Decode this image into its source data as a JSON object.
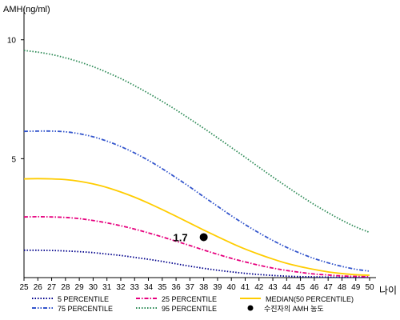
{
  "chart_data": {
    "type": "line",
    "title": "",
    "ylabel": "AMH(ng/ml)",
    "xlabel": "나이",
    "x": [
      25,
      26,
      27,
      28,
      29,
      30,
      31,
      32,
      33,
      34,
      35,
      36,
      37,
      38,
      39,
      40,
      41,
      42,
      43,
      44,
      45,
      46,
      47,
      48,
      49,
      50
    ],
    "xlim": [
      25,
      50
    ],
    "ylim": [
      0,
      11
    ],
    "yticks": [
      5,
      10
    ],
    "grid": false,
    "legend_position": "bottom",
    "series": [
      {
        "name": "5 PERCENTILE",
        "color": "#00008b",
        "dash": "dotted",
        "values": [
          1.15,
          1.15,
          1.14,
          1.12,
          1.09,
          1.05,
          0.99,
          0.93,
          0.85,
          0.77,
          0.68,
          0.58,
          0.48,
          0.39,
          0.31,
          0.24,
          0.18,
          0.13,
          0.09,
          0.06,
          0.04,
          0.03,
          0.02,
          0.01,
          0.01,
          0.01
        ]
      },
      {
        "name": "25 PERCENTILE",
        "color": "#e6007e",
        "dash": "dashdot",
        "values": [
          2.55,
          2.56,
          2.55,
          2.53,
          2.48,
          2.4,
          2.3,
          2.18,
          2.04,
          1.88,
          1.71,
          1.53,
          1.35,
          1.16,
          0.98,
          0.81,
          0.66,
          0.52,
          0.4,
          0.3,
          0.22,
          0.15,
          0.11,
          0.07,
          0.05,
          0.04
        ]
      },
      {
        "name": "MEDIAN(50 PERCENTILE)",
        "color": "#ffcc00",
        "dash": "solid",
        "values": [
          4.15,
          4.16,
          4.15,
          4.12,
          4.05,
          3.94,
          3.79,
          3.6,
          3.38,
          3.13,
          2.86,
          2.58,
          2.29,
          2.0,
          1.72,
          1.45,
          1.2,
          0.98,
          0.78,
          0.6,
          0.46,
          0.34,
          0.24,
          0.17,
          0.12,
          0.1
        ]
      },
      {
        "name": "75 PERCENTILE",
        "color": "#3355cc",
        "dash": "dashdotdot",
        "values": [
          6.15,
          6.16,
          6.16,
          6.13,
          6.05,
          5.92,
          5.74,
          5.51,
          5.24,
          4.93,
          4.58,
          4.2,
          3.81,
          3.4,
          3.0,
          2.6,
          2.23,
          1.88,
          1.56,
          1.27,
          1.02,
          0.8,
          0.62,
          0.47,
          0.35,
          0.27
        ]
      },
      {
        "name": "95 PERCENTILE",
        "color": "#2e8b57",
        "dash": "dotted",
        "values": [
          9.55,
          9.48,
          9.38,
          9.24,
          9.07,
          8.87,
          8.63,
          8.37,
          8.07,
          7.75,
          7.41,
          7.05,
          6.67,
          6.28,
          5.88,
          5.47,
          5.06,
          4.64,
          4.23,
          3.83,
          3.44,
          3.07,
          2.73,
          2.41,
          2.13,
          1.9
        ]
      }
    ],
    "point": {
      "name": "수진자의 AMH 농도",
      "x": 38,
      "y": 1.7,
      "label": "1.7",
      "color": "#000000"
    }
  }
}
